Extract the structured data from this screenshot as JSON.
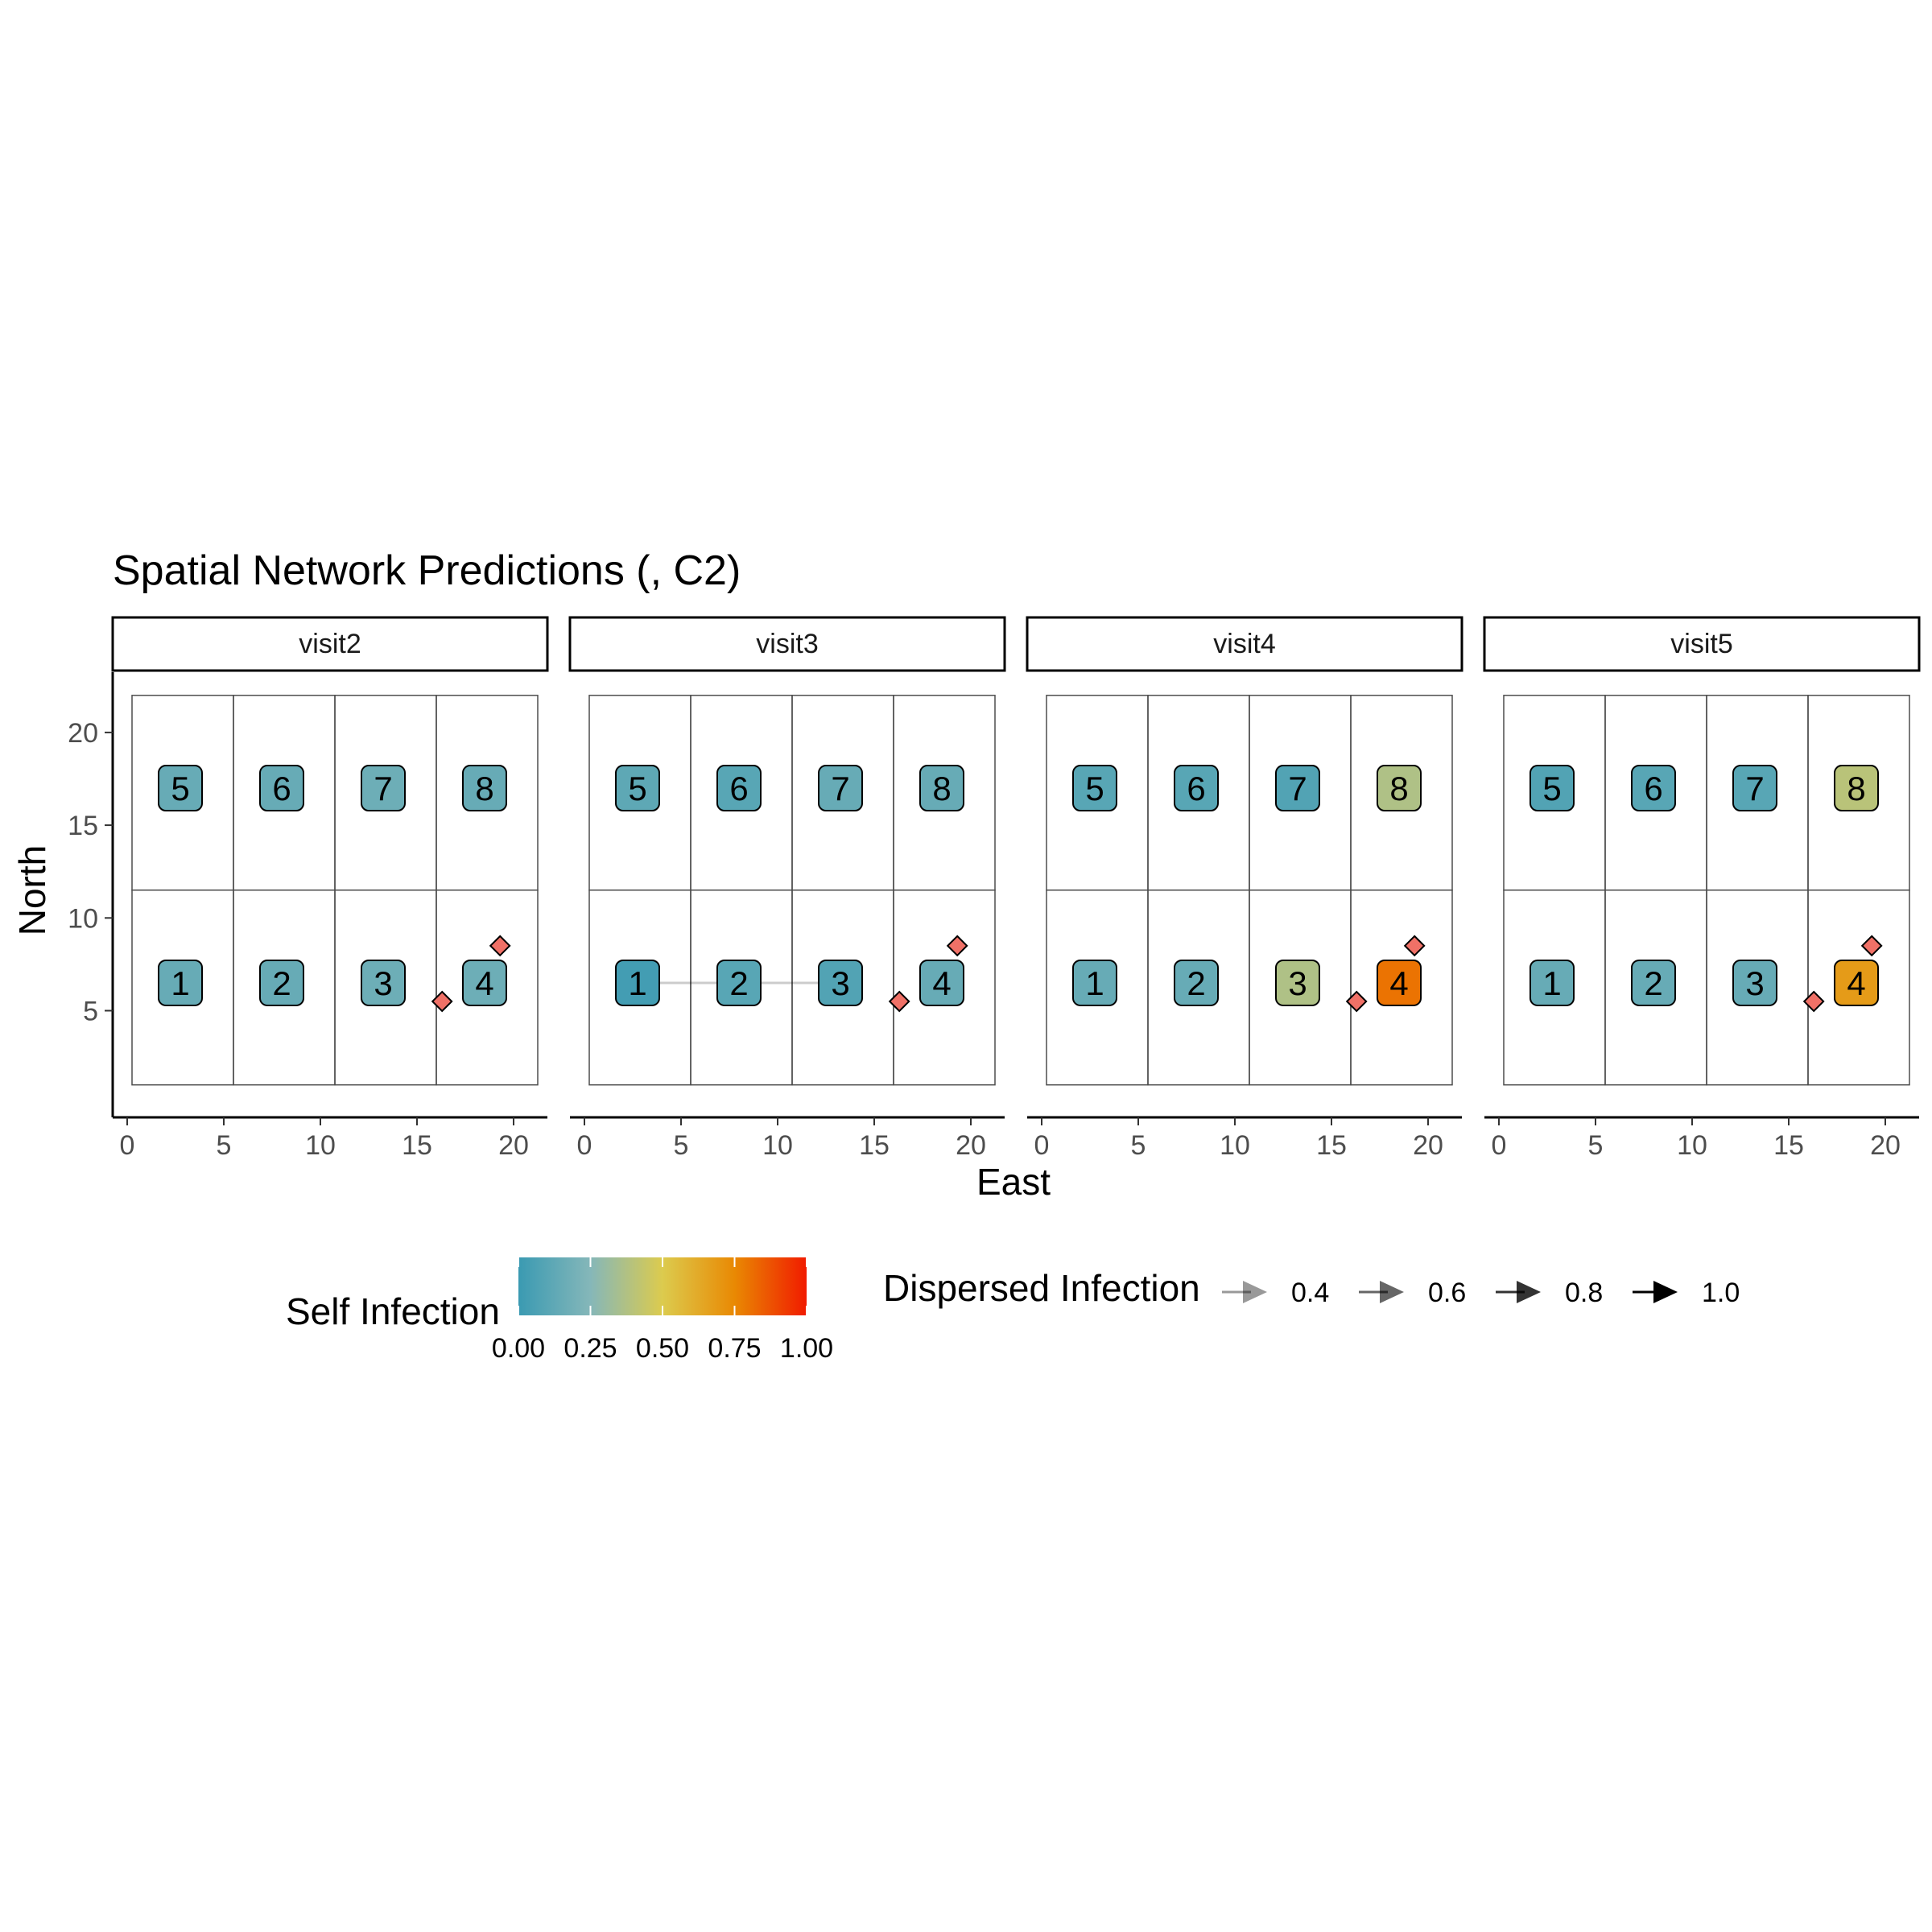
{
  "chart_data": {
    "type": "scatter",
    "title": "Spatial Network Predictions (, C2)",
    "xlabel": "East",
    "ylabel": "North",
    "xlim": [
      -0.75,
      21.75
    ],
    "ylim": [
      -0.75,
      23.25
    ],
    "x_ticks": [
      0,
      5,
      10,
      15,
      20
    ],
    "y_ticks": [
      5,
      10,
      15,
      20
    ],
    "x_tick_labels": [
      "0",
      "5",
      "10",
      "15",
      "20"
    ],
    "y_tick_labels": [
      "5",
      "10",
      "15",
      "20"
    ],
    "grid": false,
    "legend_position": "bottom",
    "colors": {
      "low": "#3a9ab2",
      "mid": "#dccb4e",
      "high": "#f11b00",
      "marker": "#f07167",
      "plot_outline": "#4d4d4d"
    },
    "color_scale": {
      "title": "Self Infection",
      "stops": [
        {
          "value": 0.0,
          "color": "#3a9ab2"
        },
        {
          "value": 0.25,
          "color": "#85b7b9"
        },
        {
          "value": 0.5,
          "color": "#dccb4e"
        },
        {
          "value": 0.75,
          "color": "#e98903"
        },
        {
          "value": 1.0,
          "color": "#f11b00"
        }
      ],
      "ticks": [
        0.0,
        0.25,
        0.5,
        0.75,
        1.0
      ],
      "tick_labels": [
        "0.00",
        "0.25",
        "0.50",
        "0.75",
        "1.00"
      ]
    },
    "arrow_legend": {
      "title": "Dispersed Infection",
      "values": [
        0.4,
        0.6,
        0.8,
        1.0
      ],
      "labels": [
        "0.4",
        "0.6",
        "0.8",
        "1.0"
      ]
    },
    "plots": [
      {
        "id": "1",
        "x0": 0.25,
        "x1": 5.5,
        "y0": 1.0,
        "y1": 11.5,
        "cx": 2.75,
        "cy": 6.5
      },
      {
        "id": "2",
        "x0": 5.5,
        "x1": 10.75,
        "y0": 1.0,
        "y1": 11.5,
        "cx": 8.0,
        "cy": 6.5
      },
      {
        "id": "3",
        "x0": 10.75,
        "x1": 16.0,
        "y0": 1.0,
        "y1": 11.5,
        "cx": 13.25,
        "cy": 6.5
      },
      {
        "id": "4",
        "x0": 16.0,
        "x1": 21.25,
        "y0": 1.0,
        "y1": 11.5,
        "cx": 18.5,
        "cy": 6.5
      },
      {
        "id": "5",
        "x0": 0.25,
        "x1": 5.5,
        "y0": 11.5,
        "y1": 22.0,
        "cx": 2.75,
        "cy": 17.0
      },
      {
        "id": "6",
        "x0": 5.5,
        "x1": 10.75,
        "y0": 11.5,
        "y1": 22.0,
        "cx": 8.0,
        "cy": 17.0
      },
      {
        "id": "7",
        "x0": 10.75,
        "x1": 16.0,
        "y0": 11.5,
        "y1": 22.0,
        "cx": 13.25,
        "cy": 17.0
      },
      {
        "id": "8",
        "x0": 16.0,
        "x1": 21.25,
        "y0": 11.5,
        "y1": 22.0,
        "cx": 18.5,
        "cy": 17.0
      }
    ],
    "markers": [
      {
        "x": 16.3,
        "y": 5.5
      },
      {
        "x": 19.3,
        "y": 8.5
      }
    ],
    "facets": [
      {
        "label": "visit2",
        "self_infection": {
          "1": 0.15,
          "2": 0.15,
          "3": 0.17,
          "4": 0.17,
          "5": 0.15,
          "6": 0.15,
          "7": 0.17,
          "8": 0.15
        },
        "arrows": []
      },
      {
        "label": "visit3",
        "self_infection": {
          "1": 0.03,
          "2": 0.1,
          "3": 0.08,
          "4": 0.15,
          "5": 0.12,
          "6": 0.1,
          "7": 0.15,
          "8": 0.15
        },
        "arrows": [
          {
            "from": "3",
            "to": "1",
            "value": 0.2
          }
        ]
      },
      {
        "label": "visit4",
        "self_infection": {
          "1": 0.15,
          "2": 0.15,
          "3": 0.37,
          "4": 0.8,
          "5": 0.1,
          "6": 0.1,
          "7": 0.08,
          "8": 0.37
        },
        "arrows": []
      },
      {
        "label": "visit5",
        "self_infection": {
          "1": 0.15,
          "2": 0.15,
          "3": 0.15,
          "4": 0.68,
          "5": 0.08,
          "6": 0.1,
          "7": 0.1,
          "8": 0.4
        },
        "arrows": []
      }
    ]
  }
}
